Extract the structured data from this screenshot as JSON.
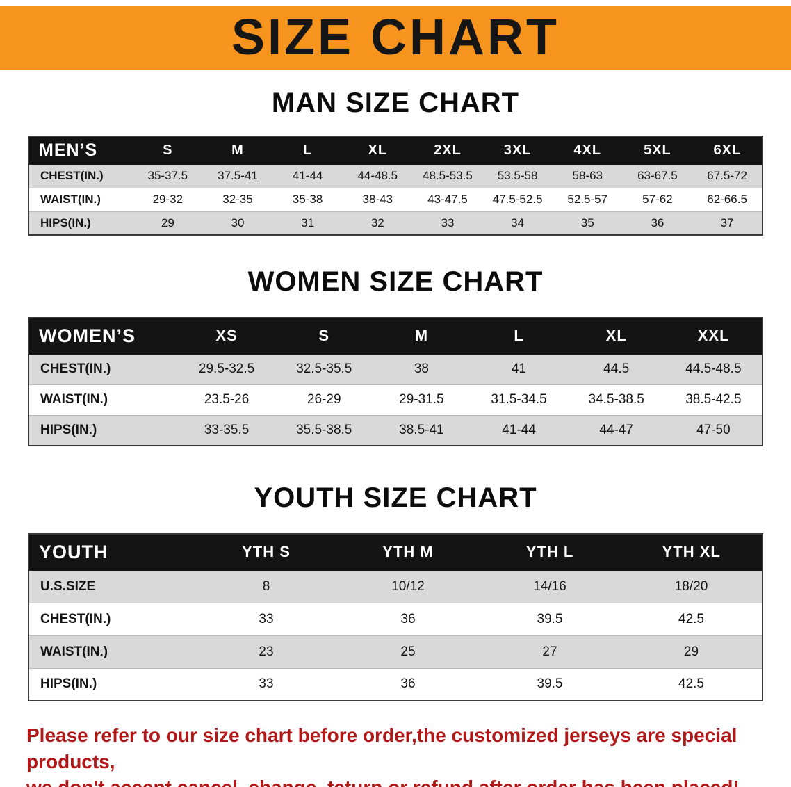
{
  "banner": {
    "title": "SIZE CHART"
  },
  "colors": {
    "banner_orange": "#F7941E",
    "table_header_black": "#141414",
    "row_gray": "#D9D9D9",
    "warning_red": "#B01818"
  },
  "sections": [
    {
      "heading": "MAN SIZE CHART",
      "name": "men-size-table",
      "table": {
        "header": [
          "MEN’S",
          "S",
          "M",
          "L",
          "XL",
          "2XL",
          "3XL",
          "4XL",
          "5XL",
          "6XL"
        ],
        "rows": [
          {
            "label": "CHEST(IN.)",
            "values": [
              "35-37.5",
              "37.5-41",
              "41-44",
              "44-48.5",
              "48.5-53.5",
              "53.5-58",
              "58-63",
              "63-67.5",
              "67.5-72"
            ]
          },
          {
            "label": "WAIST(IN.)",
            "values": [
              "29-32",
              "32-35",
              "35-38",
              "38-43",
              "43-47.5",
              "47.5-52.5",
              "52.5-57",
              "57-62",
              "62-66.5"
            ]
          },
          {
            "label": "HIPS(IN.)",
            "values": [
              "29",
              "30",
              "31",
              "32",
              "33",
              "34",
              "35",
              "36",
              "37"
            ]
          }
        ]
      }
    },
    {
      "heading": "WOMEN SIZE CHART",
      "name": "women-size-table",
      "table": {
        "header": [
          "WOMEN’S",
          "XS",
          "S",
          "M",
          "L",
          "XL",
          "XXL"
        ],
        "rows": [
          {
            "label": "CHEST(IN.)",
            "values": [
              "29.5-32.5",
              "32.5-35.5",
              "38",
              "41",
              "44.5",
              "44.5-48.5"
            ]
          },
          {
            "label": "WAIST(IN.)",
            "values": [
              "23.5-26",
              "26-29",
              "29-31.5",
              "31.5-34.5",
              "34.5-38.5",
              "38.5-42.5"
            ]
          },
          {
            "label": "HIPS(IN.)",
            "values": [
              "33-35.5",
              "35.5-38.5",
              "38.5-41",
              "41-44",
              "44-47",
              "47-50"
            ]
          }
        ]
      }
    },
    {
      "heading": "YOUTH SIZE CHART",
      "name": "youth-size-table",
      "table": {
        "header": [
          "YOUTH",
          "YTH S",
          "YTH M",
          "YTH L",
          "YTH XL"
        ],
        "rows": [
          {
            "label": "U.S.SIZE",
            "values": [
              "8",
              "10/12",
              "14/16",
              "18/20"
            ]
          },
          {
            "label": "CHEST(IN.)",
            "values": [
              "33",
              "36",
              "39.5",
              "42.5"
            ]
          },
          {
            "label": "WAIST(IN.)",
            "values": [
              "23",
              "25",
              "27",
              "29"
            ]
          },
          {
            "label": "HIPS(IN.)",
            "values": [
              "33",
              "36",
              "39.5",
              "42.5"
            ]
          }
        ]
      }
    }
  ],
  "footer": {
    "lines": [
      "Please refer to our size chart before order,the customized jerseys are special products,",
      "we don't accept cancel, change, teturn or refund after order has been placed!"
    ]
  }
}
